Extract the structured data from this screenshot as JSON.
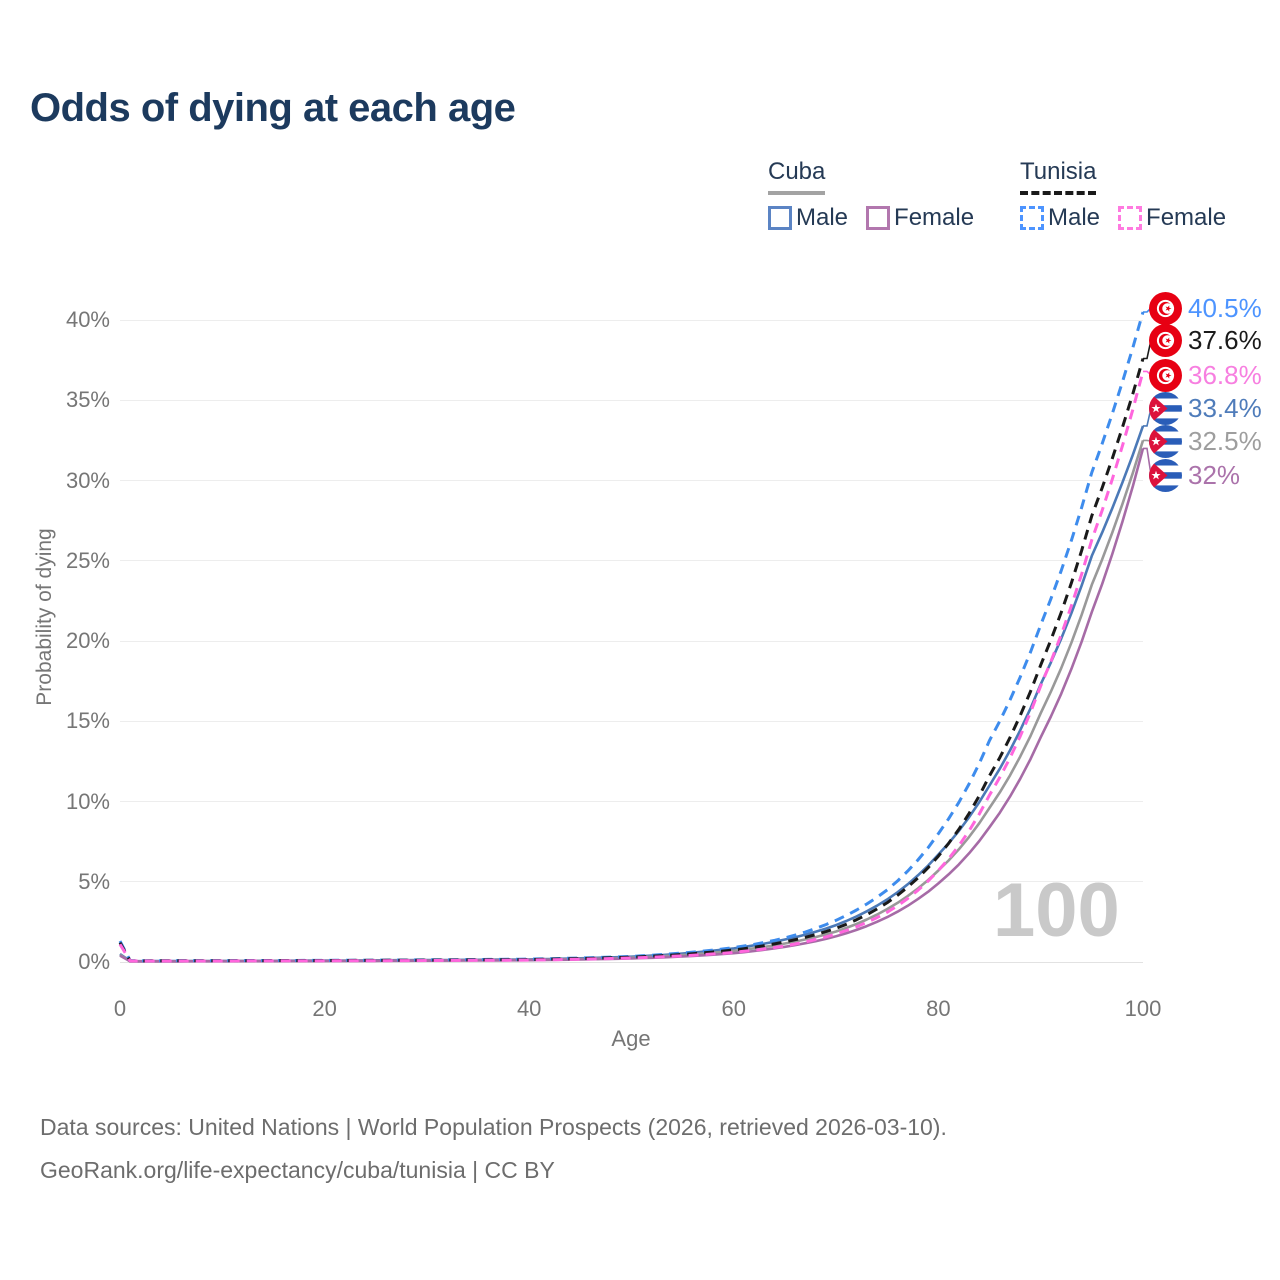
{
  "title": "Odds of dying at each age",
  "watermark": "100",
  "legend": {
    "groups": [
      {
        "country": "Cuba",
        "line_style": "solid",
        "underline_color": "#a3a3a3",
        "items": [
          {
            "label": "Male",
            "color": "#5b84c4"
          },
          {
            "label": "Female",
            "color": "#b277ae"
          }
        ]
      },
      {
        "country": "Tunisia",
        "line_style": "dashed",
        "underline_color": "#1a1a1a",
        "items": [
          {
            "label": "Male",
            "color": "#4d94ff"
          },
          {
            "label": "Female",
            "color": "#ff7ae0"
          }
        ]
      }
    ]
  },
  "chart_data": {
    "type": "line",
    "title": "Odds of dying at each age",
    "xlabel": "Age",
    "ylabel": "Probability of dying",
    "xlim": [
      0,
      100
    ],
    "ylim": [
      0,
      40
    ],
    "xticks": [
      0,
      20,
      40,
      60,
      80,
      100
    ],
    "yticks": [
      0,
      5,
      10,
      15,
      20,
      25,
      30,
      35,
      40
    ],
    "ytick_suffix": "%",
    "grid": "horizontal-only",
    "legend_position": "top-right",
    "anchor_ages": [
      0,
      1,
      20,
      40,
      50,
      60,
      65,
      70,
      75,
      80,
      85,
      90,
      95,
      100
    ],
    "series": [
      {
        "name": "Tunisia Male",
        "country": "Tunisia",
        "sex": "Male",
        "dashed": true,
        "color": "#3e8ced",
        "label_color": "#4d94ff",
        "end_label": "40.5%",
        "end_value": 40.5,
        "values": [
          1.3,
          0.08,
          0.1,
          0.18,
          0.35,
          0.9,
          1.5,
          2.6,
          4.5,
          8.0,
          13.8,
          21.0,
          30.5,
          40.5
        ]
      },
      {
        "name": "Tunisia Both sexes",
        "country": "Tunisia",
        "sex": "Both",
        "dashed": true,
        "color": "#1a1a1a",
        "label_color": "#1a1a1a",
        "end_label": "37.6%",
        "end_value": 37.6,
        "values": [
          1.2,
          0.07,
          0.09,
          0.15,
          0.3,
          0.75,
          1.25,
          2.1,
          3.7,
          6.6,
          11.6,
          18.5,
          27.8,
          37.6
        ]
      },
      {
        "name": "Tunisia Female",
        "country": "Tunisia",
        "sex": "Female",
        "dashed": true,
        "color": "#ff66dd",
        "label_color": "#f77fe0",
        "end_label": "36.8%",
        "end_value": 36.8,
        "values": [
          1.1,
          0.06,
          0.07,
          0.12,
          0.25,
          0.6,
          1.0,
          1.75,
          3.1,
          5.7,
          10.4,
          17.2,
          26.3,
          36.8
        ]
      },
      {
        "name": "Cuba Male",
        "country": "Cuba",
        "sex": "Male",
        "dashed": false,
        "color": "#4b79b7",
        "label_color": "#4f7cba",
        "end_label": "33.4%",
        "end_value": 33.4,
        "values": [
          0.5,
          0.05,
          0.09,
          0.16,
          0.33,
          0.85,
          1.4,
          2.3,
          3.9,
          6.7,
          11.0,
          17.3,
          25.3,
          33.4
        ]
      },
      {
        "name": "Cuba Both sexes",
        "country": "Cuba",
        "sex": "Both",
        "dashed": false,
        "color": "#999999",
        "label_color": "#9e9e9e",
        "end_label": "32.5%",
        "end_value": 32.5,
        "values": [
          0.45,
          0.04,
          0.07,
          0.13,
          0.27,
          0.7,
          1.15,
          1.9,
          3.3,
          5.7,
          9.6,
          15.5,
          23.5,
          32.5
        ]
      },
      {
        "name": "Cuba Female",
        "country": "Cuba",
        "sex": "Female",
        "dashed": false,
        "color": "#a66ba6",
        "label_color": "#ab73ab",
        "end_label": "32%",
        "end_value": 32.0,
        "values": [
          0.4,
          0.035,
          0.06,
          0.11,
          0.22,
          0.55,
          0.95,
          1.6,
          2.8,
          4.9,
          8.4,
          14.0,
          21.8,
          32.0
        ]
      }
    ]
  },
  "footer": {
    "line1": "Data sources: United Nations | World Population Prospects (2026, retrieved 2026-03-10).",
    "line2": "GeoRank.org/life-expectancy/cuba/tunisia | CC BY"
  }
}
